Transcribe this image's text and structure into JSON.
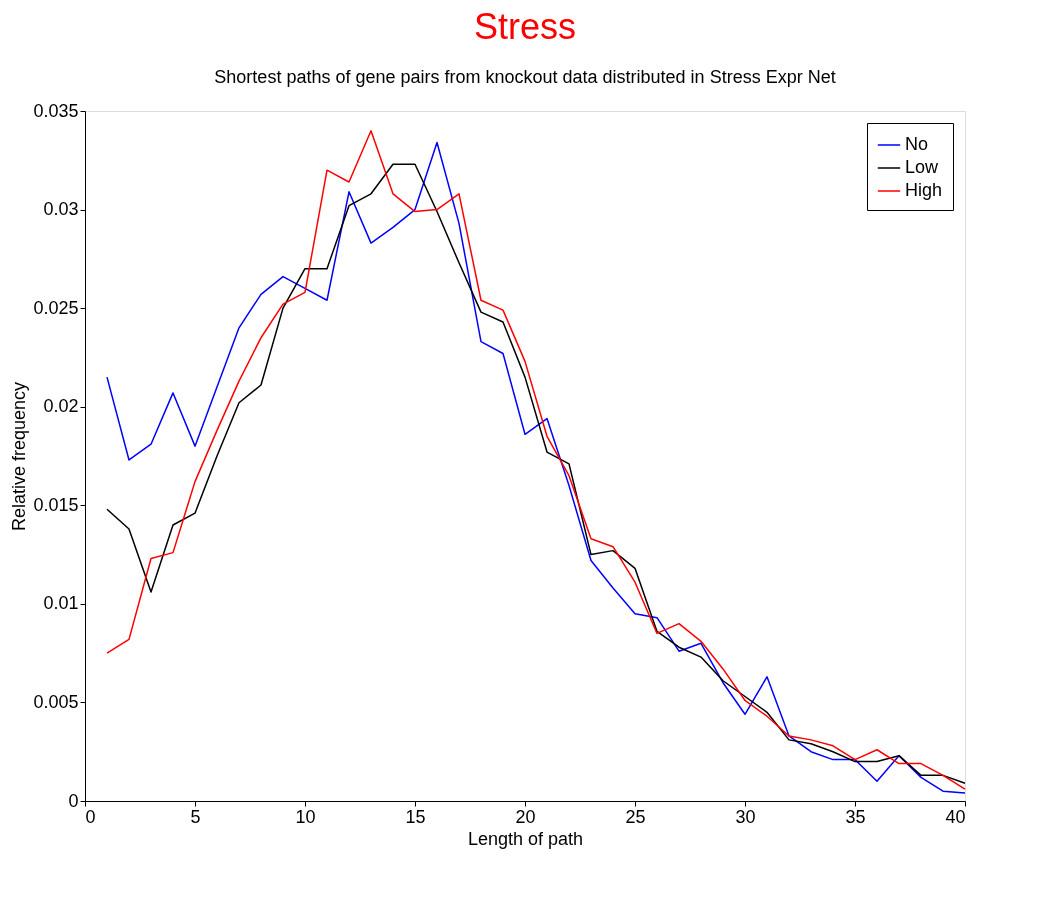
{
  "chart_data": {
    "type": "line",
    "title": "Stress",
    "subtitle": "Shortest paths of gene pairs from knockout data distributed in Stress Expr Net",
    "xlabel": "Length of path",
    "ylabel": "Relative frequency",
    "x": [
      1,
      2,
      3,
      4,
      5,
      6,
      7,
      8,
      9,
      10,
      11,
      12,
      13,
      14,
      15,
      16,
      17,
      18,
      19,
      20,
      21,
      22,
      23,
      24,
      25,
      26,
      27,
      28,
      29,
      30,
      31,
      32,
      33,
      34,
      35,
      36,
      37,
      38,
      39,
      40
    ],
    "series": [
      {
        "name": "No",
        "color": "#0000ff",
        "values": [
          0.0215,
          0.0173,
          0.0181,
          0.0207,
          0.018,
          0.021,
          0.024,
          0.0257,
          0.0266,
          0.026,
          0.0254,
          0.0309,
          0.0283,
          0.0291,
          0.03,
          0.0334,
          0.0293,
          0.0233,
          0.0227,
          0.0186,
          0.0194,
          0.016,
          0.0122,
          0.0108,
          0.0095,
          0.0093,
          0.0076,
          0.008,
          0.006,
          0.0044,
          0.0063,
          0.0033,
          0.0025,
          0.0021,
          0.0021,
          0.001,
          0.0023,
          0.0012,
          0.0005,
          0.0004
        ]
      },
      {
        "name": "Low",
        "color": "#000000",
        "values": [
          0.0148,
          0.0138,
          0.0106,
          0.014,
          0.0146,
          0.0175,
          0.0202,
          0.0211,
          0.025,
          0.027,
          0.027,
          0.0302,
          0.0308,
          0.0323,
          0.0323,
          0.0299,
          0.0273,
          0.0248,
          0.0243,
          0.0215,
          0.0177,
          0.0171,
          0.0125,
          0.0127,
          0.0118,
          0.0086,
          0.0078,
          0.0073,
          0.0061,
          0.0053,
          0.0045,
          0.0031,
          0.0029,
          0.0025,
          0.002,
          0.002,
          0.0023,
          0.0013,
          0.0013,
          0.0009
        ]
      },
      {
        "name": "High",
        "color": "#ff0000",
        "values": [
          0.0075,
          0.0082,
          0.0123,
          0.0126,
          0.0162,
          0.0188,
          0.0213,
          0.0235,
          0.0252,
          0.0258,
          0.032,
          0.0314,
          0.034,
          0.0308,
          0.0299,
          0.03,
          0.0308,
          0.0254,
          0.0249,
          0.0223,
          0.0185,
          0.0165,
          0.0133,
          0.0129,
          0.0111,
          0.0085,
          0.009,
          0.0081,
          0.0067,
          0.0051,
          0.0043,
          0.0033,
          0.0031,
          0.0028,
          0.0021,
          0.0026,
          0.0019,
          0.0019,
          0.0013,
          0.0006
        ]
      }
    ],
    "xlim": [
      0,
      40
    ],
    "xticks": [
      0,
      5,
      10,
      15,
      20,
      25,
      30,
      35,
      40
    ],
    "ylim": [
      0,
      0.035
    ],
    "yticks": [
      0,
      0.005,
      0.01,
      0.015,
      0.02,
      0.025,
      0.03,
      0.035
    ],
    "grid": false,
    "legend": "top right",
    "marker": "none",
    "line_style": "solid"
  }
}
